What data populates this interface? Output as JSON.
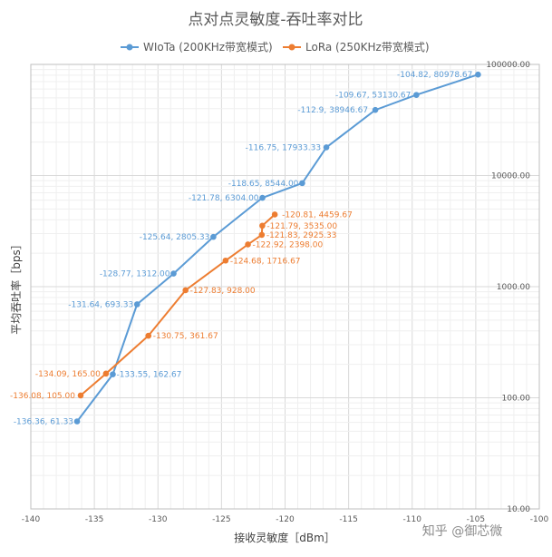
{
  "chart_data": {
    "type": "line",
    "title": "点对点灵敏度-吞吐率对比",
    "xlabel": "接收灵敏度［dBm］",
    "ylabel": "平均吞吐率［bps］",
    "xlim": [
      -140,
      -100
    ],
    "ylim": [
      10,
      100000
    ],
    "yscale": "log",
    "x_ticks": [
      "-140",
      "-135",
      "-130",
      "-125",
      "-120",
      "-115",
      "-110",
      "-105",
      "-100"
    ],
    "y_ticks": [
      "10.00",
      "100.00",
      "1000.00",
      "10000.00",
      "100000.00"
    ],
    "grid": true,
    "legend_position": "top",
    "series": [
      {
        "name": "WIoTa (200KHz带宽模式)",
        "color": "#5b9bd5",
        "points": [
          {
            "x": -136.36,
            "y": 61.33,
            "label": "-136.36, 61.33"
          },
          {
            "x": -133.55,
            "y": 162.67,
            "label": "-133.55, 162.67"
          },
          {
            "x": -131.64,
            "y": 693.33,
            "label": "-131.64, 693.33"
          },
          {
            "x": -128.77,
            "y": 1312.0,
            "label": "-128.77, 1312.00"
          },
          {
            "x": -125.64,
            "y": 2805.33,
            "label": "-125.64, 2805.33"
          },
          {
            "x": -121.78,
            "y": 6304.0,
            "label": "-121.78, 6304.00"
          },
          {
            "x": -118.65,
            "y": 8544.0,
            "label": "-118.65, 8544.00"
          },
          {
            "x": -116.75,
            "y": 17933.33,
            "label": "-116.75, 17933.33"
          },
          {
            "x": -112.9,
            "y": 38946.67,
            "label": "-112.9, 38946.67"
          },
          {
            "x": -109.67,
            "y": 53130.67,
            "label": "-109.67, 53130.67"
          },
          {
            "x": -104.82,
            "y": 80978.67,
            "label": "-104.82, 80978.67"
          }
        ]
      },
      {
        "name": "LoRa (250KHz带宽模式)",
        "color": "#ed7d31",
        "points": [
          {
            "x": -136.08,
            "y": 105.0,
            "label": "-136.08, 105.00"
          },
          {
            "x": -134.09,
            "y": 165.0,
            "label": "-134.09, 165.00"
          },
          {
            "x": -130.75,
            "y": 361.67,
            "label": "-130.75, 361.67"
          },
          {
            "x": -127.83,
            "y": 928.0,
            "label": "-127.83, 928.00"
          },
          {
            "x": -124.68,
            "y": 1716.67,
            "label": "-124.68, 1716.67"
          },
          {
            "x": -122.92,
            "y": 2398.0,
            "label": "-122.92, 2398.00"
          },
          {
            "x": -121.83,
            "y": 2925.33,
            "label": "-121.83, 2925.33"
          },
          {
            "x": -121.79,
            "y": 3535.0,
            "label": "-121.79, 3535.00"
          },
          {
            "x": -120.81,
            "y": 4459.67,
            "label": "-120.81, 4459.67"
          }
        ]
      }
    ]
  },
  "watermark": "知乎 @御芯微"
}
